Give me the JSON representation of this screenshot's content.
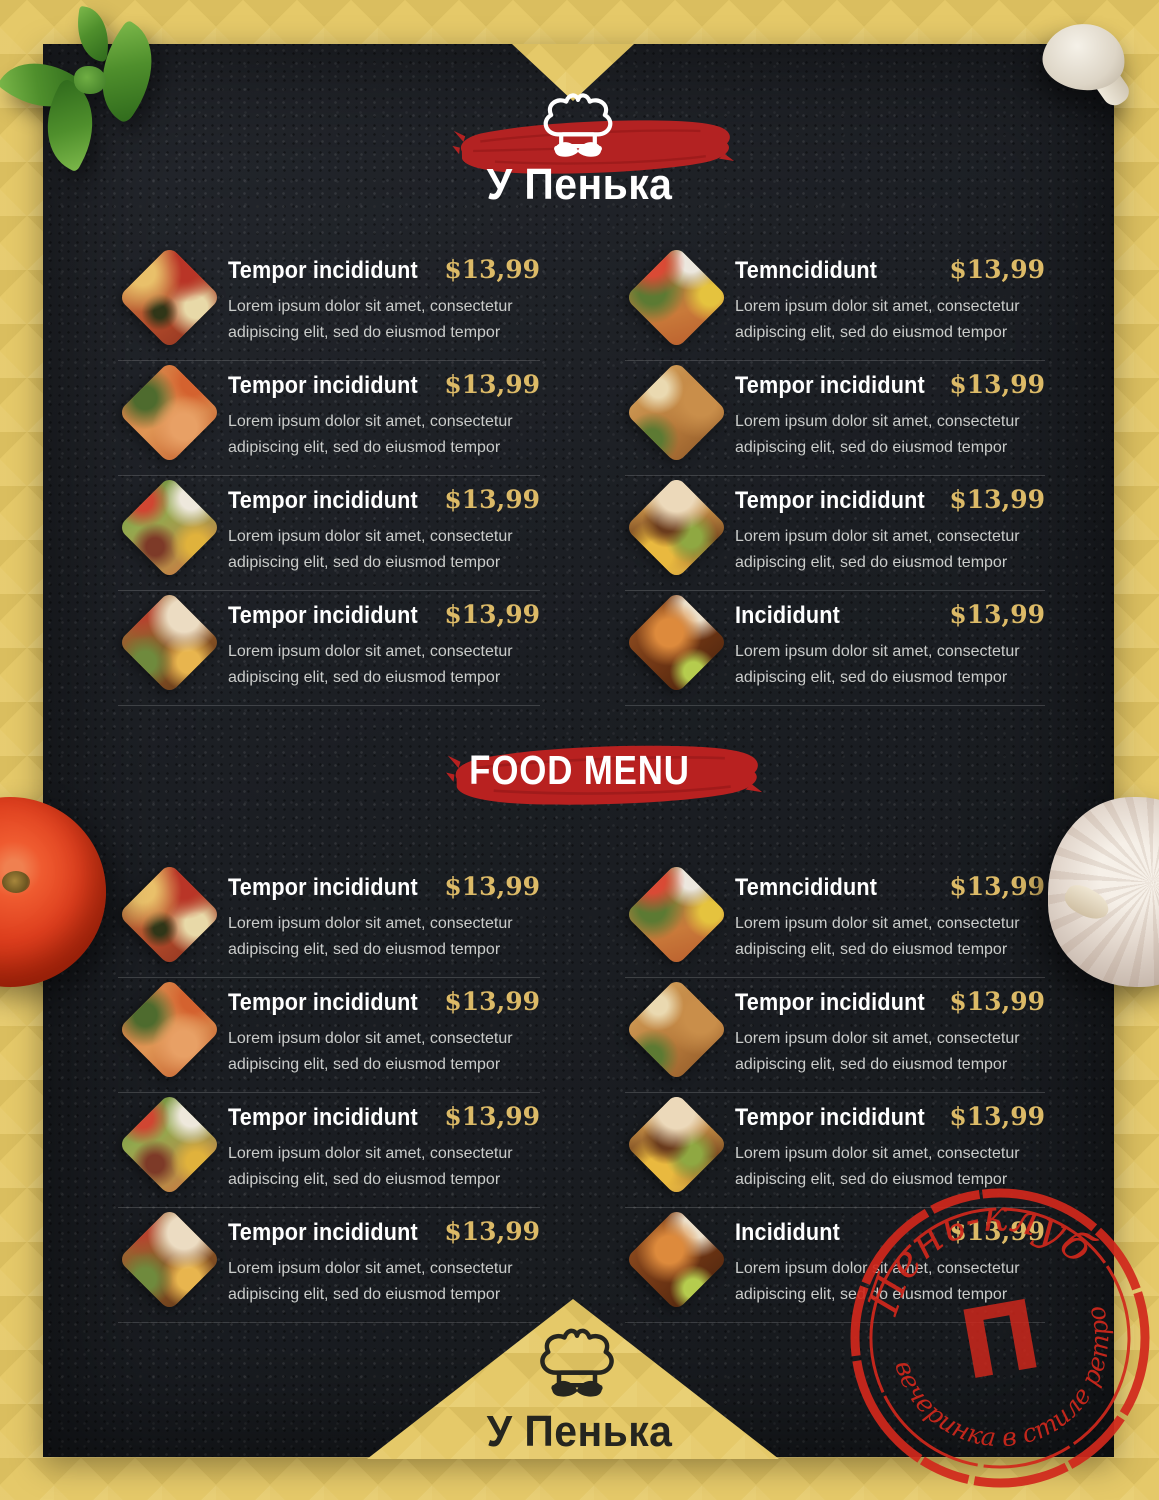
{
  "brand": {
    "name": "У Пенька",
    "icon": "chef-hat-with-mustache-icon"
  },
  "menu_title": "FOOD MENU",
  "sections": [
    {
      "items": [
        {
          "title": "Tempor incididunt",
          "price": "$13,99",
          "description": "Lorem ipsum dolor sit amet, consectetur adipiscing elit, sed do eiusmod tempor",
          "photo": "pizza"
        },
        {
          "title": "Temncididunt",
          "price": "$13,99",
          "description": "Lorem ipsum dolor sit amet, consectetur adipiscing elit, sed do eiusmod tempor",
          "photo": "grilled-salmon-salad"
        },
        {
          "title": "Tempor incididunt",
          "price": "$13,99",
          "description": "Lorem ipsum dolor sit amet, consectetur adipiscing elit, sed do eiusmod tempor",
          "photo": "shrimp-stirfry"
        },
        {
          "title": "Tempor incididunt",
          "price": "$13,99",
          "description": "Lorem ipsum dolor sit amet, consectetur adipiscing elit, sed do eiusmod tempor",
          "photo": "spring-rolls"
        },
        {
          "title": "Tempor incididunt",
          "price": "$13,99",
          "description": "Lorem ipsum dolor sit amet, consectetur adipiscing elit, sed do eiusmod tempor",
          "photo": "salad-plate"
        },
        {
          "title": "Tempor incididunt",
          "price": "$13,99",
          "description": "Lorem ipsum dolor sit amet, consectetur adipiscing elit, sed do eiusmod tempor",
          "photo": "burger"
        },
        {
          "title": "Tempor incididunt",
          "price": "$13,99",
          "description": "Lorem ipsum dolor sit amet, consectetur adipiscing elit, sed do eiusmod tempor",
          "photo": "shawarma-wrap"
        },
        {
          "title": "Incididunt",
          "price": "$13,99",
          "description": "Lorem ipsum dolor sit amet, consectetur adipiscing elit, sed do eiusmod tempor",
          "photo": "chicken-wings"
        }
      ]
    },
    {
      "items": [
        {
          "title": "Tempor incididunt",
          "price": "$13,99",
          "description": "Lorem ipsum dolor sit amet, consectetur adipiscing elit, sed do eiusmod tempor",
          "photo": "pizza"
        },
        {
          "title": "Temncididunt",
          "price": "$13,99",
          "description": "Lorem ipsum dolor sit amet, consectetur adipiscing elit, sed do eiusmod tempor",
          "photo": "grilled-salmon-salad"
        },
        {
          "title": "Tempor incididunt",
          "price": "$13,99",
          "description": "Lorem ipsum dolor sit amet, consectetur adipiscing elit, sed do eiusmod tempor",
          "photo": "shrimp-stirfry"
        },
        {
          "title": "Tempor incididunt",
          "price": "$13,99",
          "description": "Lorem ipsum dolor sit amet, consectetur adipiscing elit, sed do eiusmod tempor",
          "photo": "spring-rolls"
        },
        {
          "title": "Tempor incididunt",
          "price": "$13,99",
          "description": "Lorem ipsum dolor sit amet, consectetur adipiscing elit, sed do eiusmod tempor",
          "photo": "salad-plate"
        },
        {
          "title": "Tempor incididunt",
          "price": "$13,99",
          "description": "Lorem ipsum dolor sit amet, consectetur adipiscing elit, sed do eiusmod tempor",
          "photo": "burger"
        },
        {
          "title": "Tempor incididunt",
          "price": "$13,99",
          "description": "Lorem ipsum dolor sit amet, consectetur adipiscing elit, sed do eiusmod tempor",
          "photo": "shawarma-wrap"
        },
        {
          "title": "Incididunt",
          "price": "$13,99",
          "description": "Lorem ipsum dolor sit amet, consectetur adipiscing elit, sed do eiusmod tempor",
          "photo": "chicken-wings"
        }
      ]
    }
  ],
  "stamp": {
    "arc_top": "Пень-клуб",
    "arc_bottom": "вечеринка в стиле ретро",
    "center_letter": "П",
    "color": "#d1281c"
  },
  "decorations": {
    "top_left": "basil-leaves",
    "top_right": "mushroom",
    "middle_left": "tomato",
    "middle_right": "garlic-bulb"
  },
  "colors": {
    "frame_gold": "#e5c969",
    "panel_dark": "#1d2025",
    "brand_red": "#b32222",
    "price_gold": "#dcba67",
    "title_white": "#ffffff",
    "description_gray": "#caccca",
    "stamp_red": "#d1281c",
    "footer_text_dark": "#25251f"
  }
}
